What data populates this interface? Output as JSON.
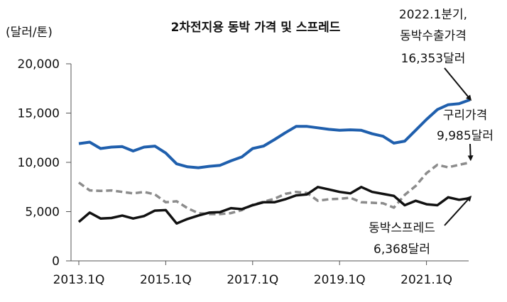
{
  "chart_data": {
    "type": "line",
    "title": "2차전지용 동박 가격 및 스프레드",
    "ylabel": "(달러/톤)",
    "ylim": [
      0,
      20000
    ],
    "yticks": [
      0,
      5000,
      10000,
      15000,
      20000
    ],
    "ytick_labels": [
      "0",
      "5,000",
      "10,000",
      "15,000",
      "20,000"
    ],
    "xtick_labels": [
      "2013.1Q",
      "2015.1Q",
      "2017.1Q",
      "2019.1Q",
      "2021.1Q"
    ],
    "xtick_index": [
      0,
      8,
      16,
      24,
      32
    ],
    "grid": false,
    "series": [
      {
        "key": "copper_foil",
        "color": "#1f5fad",
        "style": "solid",
        "values": [
          11900,
          12050,
          11400,
          11550,
          11600,
          11150,
          11550,
          11650,
          10950,
          9850,
          9550,
          9450,
          9600,
          9700,
          10150,
          10550,
          11400,
          11650,
          12300,
          13000,
          13650,
          13650,
          13500,
          13350,
          13250,
          13300,
          13250,
          12900,
          12650,
          11950,
          12150,
          13250,
          14350,
          15350,
          15850,
          15950,
          16353
        ]
      },
      {
        "key": "copper",
        "color": "#8c8c8c",
        "style": "dashed",
        "values": [
          7950,
          7150,
          7100,
          7150,
          7000,
          6850,
          7000,
          6750,
          5950,
          6050,
          5350,
          4850,
          4750,
          4750,
          4850,
          5150,
          5700,
          6000,
          6300,
          6800,
          7000,
          6900,
          6100,
          6250,
          6300,
          6400,
          5950,
          5900,
          5850,
          5400,
          6700,
          7600,
          8900,
          9750,
          9500,
          9750,
          9985
        ]
      },
      {
        "key": "spread",
        "color": "#111111",
        "style": "solid",
        "values": [
          3950,
          4900,
          4300,
          4350,
          4600,
          4300,
          4550,
          5100,
          5150,
          3800,
          4250,
          4600,
          4900,
          4950,
          5350,
          5250,
          5650,
          5950,
          5950,
          6250,
          6650,
          6750,
          7500,
          7250,
          7000,
          6850,
          7500,
          7000,
          6800,
          6600,
          5650,
          6100,
          5750,
          5650,
          6450,
          6200,
          6368
        ]
      }
    ],
    "annotations": [
      {
        "key": "copper_foil",
        "lines": [
          "2022.1분기,",
          "동박수출가격",
          "16,353달러"
        ]
      },
      {
        "key": "copper",
        "lines": [
          "구리가격",
          "9,985달러"
        ]
      },
      {
        "key": "spread",
        "lines": [
          "동박스프레드",
          "6,368달러"
        ]
      }
    ]
  }
}
